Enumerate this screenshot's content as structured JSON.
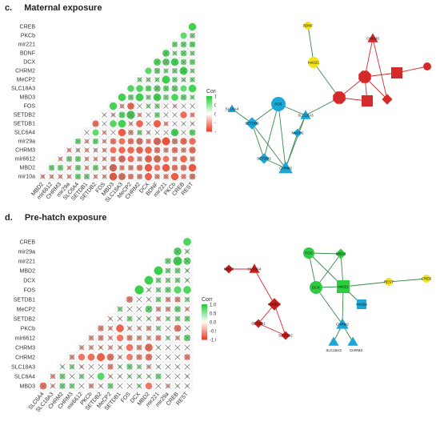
{
  "panels": [
    {
      "letter": "c.",
      "title": "Maternal exposure",
      "matrix": {
        "rows": [
          "CREB",
          "PKCb",
          "mir221",
          "BDNF",
          "DCX",
          "CHRM2",
          "MeCP2",
          "SLC18A3",
          "MBD3",
          "FOS",
          "SETDB2",
          "SETDB1",
          "SLC6A4",
          "mir29a",
          "CHRM3",
          "mir6612",
          "MBD2",
          "mir10a"
        ],
        "cols": [
          "MBD2",
          "mir6612",
          "CHRM3",
          "mir29a",
          "SLC6A4",
          "SETDB1",
          "SETDB2",
          "FOS",
          "MBD3",
          "SLC18A3",
          "MeCP2",
          "CHRM2",
          "DCX",
          "BDNF",
          "mir221",
          "PKCb",
          "CREB",
          "REST"
        ],
        "legend_title": "Corr",
        "legend_ticks": [
          "1.0",
          "0.5",
          "0.0",
          "-0.5",
          "-1.0"
        ]
      },
      "network": {
        "nodes": [
          {
            "id": "BDNF",
            "label": "BDNF",
            "shape": "circle",
            "color": "#f2e41a"
          },
          {
            "id": "mir221",
            "label": "mir221",
            "shape": "circle",
            "color": "#f2e41a"
          },
          {
            "id": "CHRM3",
            "label": "CHRM3",
            "shape": "triangle",
            "color": "#d42a2a"
          },
          {
            "id": "redsq1",
            "label": "",
            "shape": "square",
            "color": "#d42a2a"
          },
          {
            "id": "redcirc",
            "label": "",
            "shape": "circle",
            "color": "#d42a2a"
          },
          {
            "id": "redhex",
            "label": "",
            "shape": "octagon",
            "color": "#d42a2a"
          },
          {
            "id": "redhept",
            "label": "",
            "shape": "octagon",
            "color": "#d42a2a"
          },
          {
            "id": "redsq2",
            "label": "",
            "shape": "square",
            "color": "#d42a2a"
          },
          {
            "id": "reddia",
            "label": "",
            "shape": "diamond",
            "color": "#d42a2a"
          },
          {
            "id": "FOS",
            "label": "FOS",
            "shape": "circle",
            "color": "#1aa8d8"
          },
          {
            "id": "SLC6A4",
            "label": "SLC6A4",
            "shape": "triangle",
            "color": "#1aa8d8"
          },
          {
            "id": "SETDB1",
            "label": "SETDB1",
            "shape": "diamond",
            "color": "#1aa8d8"
          },
          {
            "id": "SLC18A3",
            "label": "SLC18A3",
            "shape": "triangle",
            "color": "#1aa8d8"
          },
          {
            "id": "MeCP2",
            "label": "MeCP2",
            "shape": "diamond",
            "color": "#1aa8d8"
          },
          {
            "id": "SETDB2",
            "label": "SETDB2",
            "shape": "diamond",
            "color": "#1aa8d8"
          },
          {
            "id": "CHRM2",
            "label": "CHRM2",
            "shape": "triangle",
            "color": "#1aa8d8"
          }
        ]
      }
    },
    {
      "letter": "d.",
      "title": "Pre-hatch exposure",
      "matrix": {
        "rows": [
          "CREB",
          "mir29a",
          "mir221",
          "MBD2",
          "DCX",
          "FOS",
          "SETDB1",
          "MeCP2",
          "SETDB2",
          "PKCb",
          "mir6612",
          "CHRM3",
          "CHRM2",
          "SLC18A3",
          "SLC6A4",
          "MBD3"
        ],
        "cols": [
          "SLC6A4",
          "SLC18A3",
          "CHRM2",
          "CHRM3",
          "mir6612",
          "PKCb",
          "SETDB2",
          "MeCP2",
          "SETDB1",
          "FOS",
          "DCX",
          "MBD2",
          "mir221",
          "mir29a",
          "CREB",
          "REST"
        ],
        "legend_title": "Corr",
        "legend_ticks": [
          "1.0",
          "0.5",
          "0.0",
          "-0.5",
          "-1.0"
        ]
      },
      "network": {
        "nodes": [
          {
            "id": "MBD3",
            "label": "MBD3",
            "shape": "diamond",
            "color": "#c62020"
          },
          {
            "id": "SLC6A4",
            "label": "SLC6A4",
            "shape": "triangle",
            "color": "#c62020"
          },
          {
            "id": "mir6612",
            "label": "mir6612",
            "shape": "diamond",
            "color": "#c62020"
          },
          {
            "id": "SETDB1",
            "label": "SETDB1",
            "shape": "diamond",
            "color": "#c62020"
          },
          {
            "id": "SETDB2",
            "label": "SETDB2",
            "shape": "diamond",
            "color": "#c62020"
          },
          {
            "id": "FOS",
            "label": "FOS",
            "shape": "circle",
            "color": "#2ecc40"
          },
          {
            "id": "MBD2",
            "label": "MBD2",
            "shape": "diamond",
            "color": "#2ecc40"
          },
          {
            "id": "DCX",
            "label": "DCX",
            "shape": "circle",
            "color": "#2ecc40"
          },
          {
            "id": "mir221",
            "label": "mir221",
            "shape": "square",
            "color": "#2ecc40"
          },
          {
            "id": "REST",
            "label": "REST",
            "shape": "circle",
            "color": "#f2e41a"
          },
          {
            "id": "CREB",
            "label": "CREB",
            "shape": "circle",
            "color": "#f2e41a"
          },
          {
            "id": "mir29a",
            "label": "mir29a",
            "shape": "square",
            "color": "#1aa8d8"
          },
          {
            "id": "CHRM2",
            "label": "CHRM2",
            "shape": "triangle",
            "color": "#1aa8d8"
          },
          {
            "id": "SLC18A3",
            "label": "SLC18A3",
            "shape": "triangle",
            "color": "#1aa8d8"
          },
          {
            "id": "CHRM3",
            "label": "CHRM3",
            "shape": "triangle",
            "color": "#1aa8d8"
          }
        ]
      }
    }
  ],
  "chart_data": [
    {
      "type": "heatmap",
      "title": "Maternal exposure",
      "rows": [
        "CREB",
        "PKCb",
        "mir221",
        "BDNF",
        "DCX",
        "CHRM2",
        "MeCP2",
        "SLC18A3",
        "MBD3",
        "FOS",
        "SETDB2",
        "SETDB1",
        "SLC6A4",
        "mir29a",
        "CHRM3",
        "mir6612",
        "MBD2",
        "mir10a"
      ],
      "cols": [
        "MBD2",
        "mir6612",
        "CHRM3",
        "mir29a",
        "SLC6A4",
        "SETDB1",
        "SETDB2",
        "FOS",
        "MBD3",
        "SLC18A3",
        "MeCP2",
        "CHRM2",
        "DCX",
        "BDNF",
        "mir221",
        "PKCb",
        "CREB",
        "REST"
      ],
      "color_scale": {
        "min": -1.0,
        "max": 1.0,
        "neg": "#e8462e",
        "zero": "#ffffff",
        "pos": "#2ecc40"
      }
    },
    {
      "type": "heatmap",
      "title": "Pre-hatch exposure",
      "rows": [
        "CREB",
        "mir29a",
        "mir221",
        "MBD2",
        "DCX",
        "FOS",
        "SETDB1",
        "MeCP2",
        "SETDB2",
        "PKCb",
        "mir6612",
        "CHRM3",
        "CHRM2",
        "SLC18A3",
        "SLC6A4",
        "MBD3"
      ],
      "cols": [
        "SLC6A4",
        "SLC18A3",
        "CHRM2",
        "CHRM3",
        "mir6612",
        "PKCb",
        "SETDB2",
        "MeCP2",
        "SETDB1",
        "FOS",
        "DCX",
        "MBD2",
        "mir221",
        "mir29a",
        "CREB",
        "REST"
      ],
      "color_scale": {
        "min": -1.0,
        "max": 1.0,
        "neg": "#e8462e",
        "zero": "#ffffff",
        "pos": "#2ecc40"
      }
    }
  ]
}
